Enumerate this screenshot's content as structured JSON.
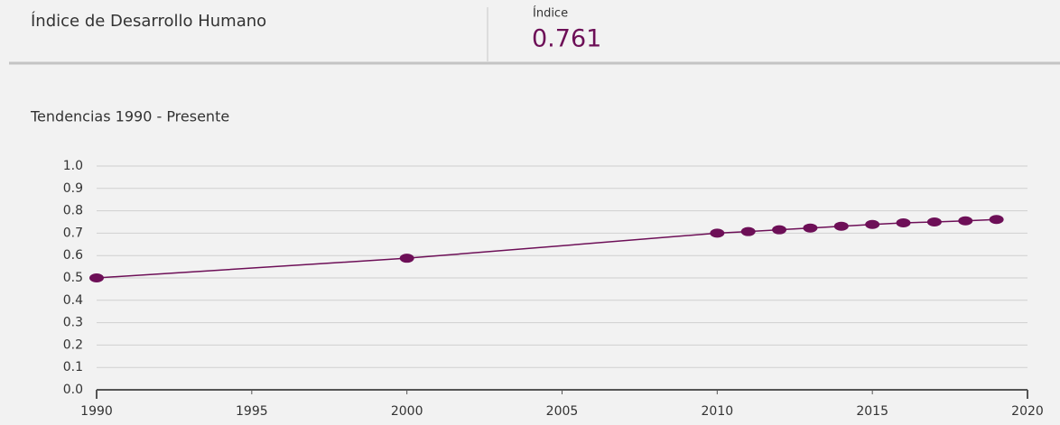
{
  "header": {
    "title": "Índice de Desarrollo Humano",
    "value_label": "Índice",
    "value": "0.761"
  },
  "chart_data": {
    "type": "line",
    "title": "Tendencias 1990 - Presente",
    "x": [
      1990,
      2000,
      2010,
      2011,
      2012,
      2013,
      2014,
      2015,
      2016,
      2017,
      2018,
      2019
    ],
    "series": [
      {
        "name": null,
        "color": "#6d0f57",
        "values": [
          0.5,
          0.588,
          0.7,
          0.707,
          0.715,
          0.723,
          0.731,
          0.739,
          0.746,
          0.75,
          0.755,
          0.761
        ]
      }
    ],
    "xlim": [
      1990,
      2020
    ],
    "xticks": [
      1990,
      1995,
      2000,
      2005,
      2010,
      2015,
      2020
    ],
    "ylim": [
      0,
      1
    ],
    "yticks": [
      {
        "value": 0,
        "label": "0.0"
      },
      0.1,
      0.2,
      0.3,
      0.4,
      0.5,
      0.6,
      0.7,
      0.8,
      0.9,
      {
        "value": 1,
        "label": "1.0"
      }
    ],
    "grid": true
  }
}
